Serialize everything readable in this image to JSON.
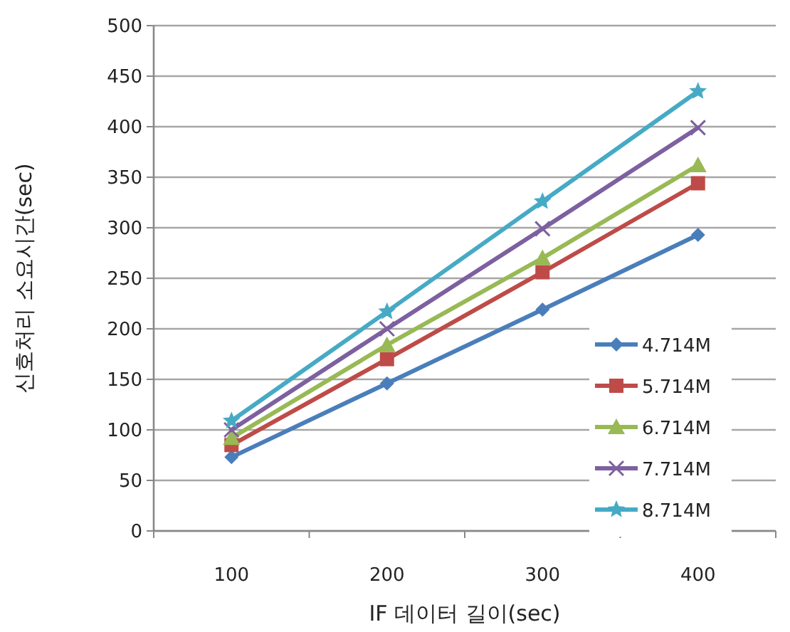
{
  "chart_data": {
    "type": "line",
    "xlabel": "IF 데이터 길이(sec)",
    "ylabel": "신호처리 소요시간(sec)",
    "categories": [
      "100",
      "200",
      "300",
      "400"
    ],
    "ylim": [
      0,
      500
    ],
    "yticks": [
      0,
      50,
      100,
      150,
      200,
      250,
      300,
      350,
      400,
      450,
      500
    ],
    "grid": "y",
    "legend": "bottom right",
    "series": [
      {
        "name": "4.714M",
        "color": "#4a7ebb",
        "marker": "diamond",
        "values": [
          73,
          146,
          219,
          293
        ]
      },
      {
        "name": "5.714M",
        "color": "#be4b48",
        "marker": "square",
        "values": [
          85,
          170,
          256,
          344
        ]
      },
      {
        "name": "6.714M",
        "color": "#98b954",
        "marker": "triangle",
        "values": [
          92,
          184,
          270,
          362
        ]
      },
      {
        "name": "7.714M",
        "color": "#7d60a0",
        "marker": "cross",
        "values": [
          100,
          200,
          299,
          399
        ]
      },
      {
        "name": "8.714M",
        "color": "#46aac5",
        "marker": "star",
        "values": [
          109,
          217,
          326,
          435
        ]
      }
    ]
  }
}
